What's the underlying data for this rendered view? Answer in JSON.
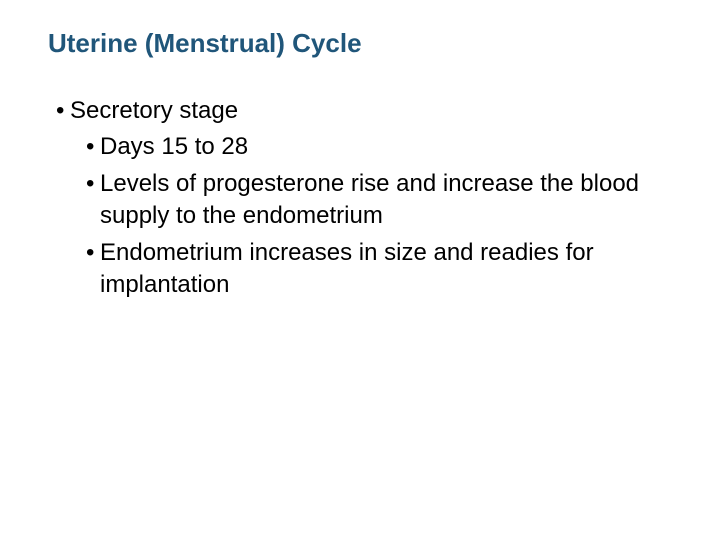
{
  "title": "Uterine (Menstrual) Cycle",
  "colors": {
    "title_color": "#20567a",
    "body_color": "#000000",
    "background": "#ffffff"
  },
  "typography": {
    "title_fontsize": 26,
    "body_fontsize": 24,
    "title_weight": "bold",
    "body_weight": "normal",
    "font_family": "Arial"
  },
  "bullets": {
    "lvl1": [
      "Secretory stage"
    ],
    "lvl2": [
      "Days 15 to 28",
      "Levels of progesterone rise and increase the blood supply to the endometrium",
      "Endometrium increases in size and readies for implantation"
    ]
  },
  "bullet_char": "•"
}
